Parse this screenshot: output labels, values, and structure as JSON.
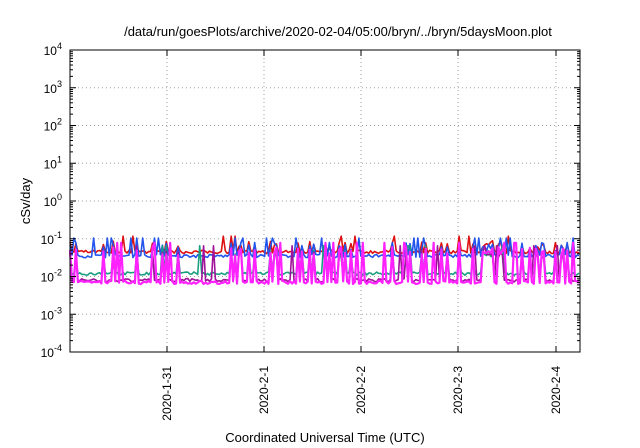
{
  "chart_data": {
    "type": "line",
    "title": "/data/run/goesPlots/archive/2020-02-04/05:00/bryn/../bryn/5daysMoon.plot",
    "xlabel": "Coordinated Universal Time (UTC)",
    "ylabel": "cSv/day",
    "y_scale": "log",
    "ylim_exponents": [
      -4,
      4
    ],
    "y_ticks": [
      {
        "base": "10",
        "exp": "4",
        "value": 4
      },
      {
        "base": "10",
        "exp": "3",
        "value": 3
      },
      {
        "base": "10",
        "exp": "2",
        "value": 2
      },
      {
        "base": "10",
        "exp": "1",
        "value": 1
      },
      {
        "base": "10",
        "exp": "0",
        "value": 0
      },
      {
        "base": "10",
        "exp": "-1",
        "value": -1
      },
      {
        "base": "10",
        "exp": "-2",
        "value": -2
      },
      {
        "base": "10",
        "exp": "-3",
        "value": -3
      },
      {
        "base": "10",
        "exp": "-4",
        "value": -4
      }
    ],
    "xlim_days": [
      "2020-01-30",
      "2020-02-04 05:00"
    ],
    "x_ticks": [
      "2020-1-31",
      "2020-2-1",
      "2020-2-2",
      "2020-2-3",
      "2020-2-4"
    ],
    "grid": true,
    "series": [
      {
        "color": "#dd1111",
        "baseline": 0.045,
        "spike_max": 0.09
      },
      {
        "color": "#2255ee",
        "baseline": 0.035,
        "spike_max": 0.08
      },
      {
        "color": "#1a9f80",
        "baseline": 0.012,
        "spike_max": 0.05
      },
      {
        "color": "#a0129a",
        "baseline": 0.008,
        "spike_max": 0.05
      },
      {
        "color": "#ff22ff",
        "baseline": 0.007,
        "spike_max": 0.06
      }
    ]
  }
}
